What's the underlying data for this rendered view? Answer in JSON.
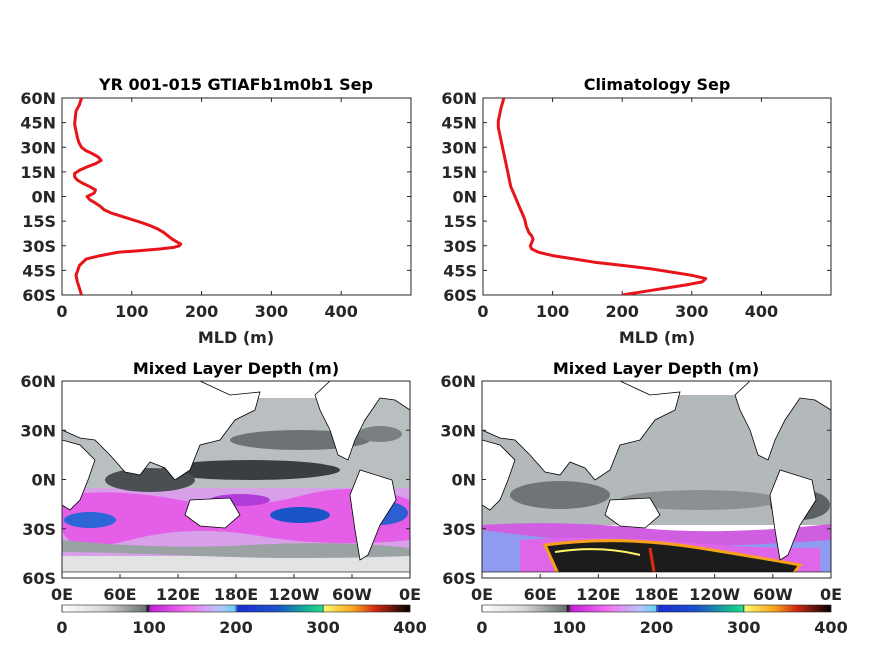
{
  "chart_data": [
    {
      "type": "line",
      "title": "YR 001-015 GTIAFb1m0b1 Sep",
      "xlabel": "MLD (m)",
      "ylabel": "",
      "xlim": [
        0,
        500
      ],
      "ylim": [
        -60,
        60
      ],
      "xticks": [
        "0",
        "100",
        "200",
        "300",
        "400"
      ],
      "yticks": [
        "60N",
        "45N",
        "30N",
        "15N",
        "0N",
        "15S",
        "30S",
        "45S",
        "60S"
      ],
      "series_color": "#e8141b",
      "series": [
        {
          "x": [
            28,
            25,
            20,
            19,
            18,
            20,
            22,
            24,
            28,
            34,
            44,
            52,
            56,
            48,
            36,
            25,
            18,
            18,
            22,
            30,
            40,
            48,
            46,
            36,
            40,
            48,
            55,
            60,
            70,
            85,
            100,
            115,
            128,
            138,
            146,
            152,
            158,
            162,
            166,
            170,
            168,
            160,
            140,
            110,
            80,
            55,
            35,
            25,
            20,
            22,
            25,
            28
          ],
          "y": [
            60,
            56,
            52,
            48,
            44,
            40,
            36,
            33,
            30,
            28,
            26,
            24,
            22,
            20,
            18,
            16,
            14,
            12,
            10,
            8,
            6,
            4,
            2,
            0,
            -2,
            -4,
            -6,
            -8,
            -10,
            -12,
            -14,
            -16,
            -18,
            -20,
            -22,
            -24,
            -26,
            -27,
            -28,
            -29,
            -30,
            -31,
            -32,
            -33,
            -34,
            -36,
            -38,
            -42,
            -48,
            -52,
            -56,
            -60
          ]
        }
      ]
    },
    {
      "type": "line",
      "title": "Climatology Sep",
      "xlabel": "MLD (m)",
      "ylabel": "",
      "xlim": [
        0,
        500
      ],
      "ylim": [
        -60,
        60
      ],
      "xticks": [
        "0",
        "100",
        "200",
        "300",
        "400"
      ],
      "yticks": [
        "60N",
        "45N",
        "30N",
        "15N",
        "0N",
        "15S",
        "30S",
        "45S",
        "60S"
      ],
      "series_color": "#e8141b",
      "series": [
        {
          "x": [
            30,
            28,
            26,
            24,
            22,
            22,
            24,
            26,
            28,
            30,
            32,
            34,
            36,
            38,
            40,
            44,
            48,
            52,
            56,
            60,
            62,
            66,
            70,
            72,
            70,
            68,
            70,
            80,
            100,
            130,
            160,
            200,
            240,
            270,
            300,
            320,
            315,
            290,
            260,
            230,
            200
          ],
          "y": [
            60,
            57,
            54,
            50,
            46,
            42,
            38,
            34,
            30,
            26,
            22,
            18,
            14,
            10,
            6,
            2,
            -2,
            -6,
            -10,
            -14,
            -18,
            -22,
            -24,
            -26,
            -28,
            -30,
            -32,
            -34,
            -36,
            -38,
            -40,
            -42,
            -44,
            -46,
            -48,
            -50,
            -52,
            -54,
            -56,
            -58,
            -60
          ]
        }
      ]
    },
    {
      "type": "heatmap",
      "title": "Mixed Layer Depth (m)",
      "xticks": [
        "0E",
        "60E",
        "120E",
        "180E",
        "120W",
        "60W",
        "0E"
      ],
      "yticks": [
        "60N",
        "30N",
        "0N",
        "30S",
        "60S"
      ],
      "ylim": [
        -60,
        60
      ],
      "colorbar": {
        "ticks": [
          "0",
          "100",
          "200",
          "300",
          "400"
        ],
        "range": [
          0,
          400
        ]
      }
    },
    {
      "type": "heatmap",
      "title": "Mixed Layer Depth (m)",
      "xticks": [
        "0E",
        "60E",
        "120E",
        "180E",
        "120W",
        "60W",
        "0E"
      ],
      "yticks": [
        "60N",
        "30N",
        "0N",
        "30S",
        "60S"
      ],
      "ylim": [
        -60,
        60
      ],
      "colorbar": {
        "ticks": [
          "0",
          "100",
          "200",
          "300",
          "400"
        ],
        "range": [
          0,
          400
        ]
      }
    }
  ]
}
